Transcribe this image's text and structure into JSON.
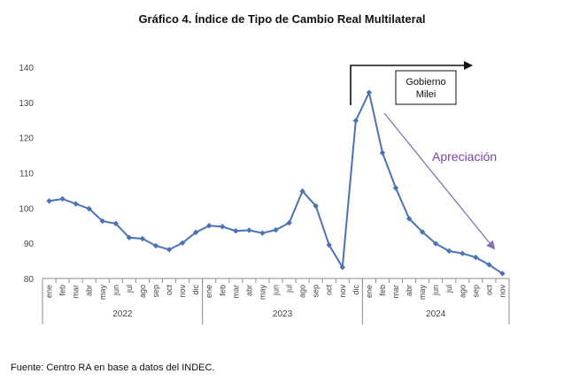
{
  "page": {
    "source": "Fuente: Centro RA en base a datos del INDEC."
  },
  "colors": {
    "series": "#4a72b8",
    "annotation_arrow": "#8a6fb3",
    "annotation_text": "#7a45a8",
    "axis": "#8c8c8c",
    "text": "#444444"
  },
  "chart_data": {
    "type": "line",
    "title": "Gráfico 4. Índice de Tipo de Cambio Real Multilateral",
    "xlabel": "",
    "ylabel": "",
    "ylim": [
      80,
      140
    ],
    "yticks": [
      80,
      90,
      100,
      110,
      120,
      130,
      140
    ],
    "grid": false,
    "legend": "none",
    "categories": [
      "ene",
      "feb",
      "mar",
      "abr",
      "may",
      "jun",
      "jul",
      "ago",
      "sep",
      "oct",
      "nov",
      "dic",
      "ene",
      "feb",
      "mar",
      "abr",
      "may",
      "jun",
      "jul",
      "ago",
      "sep",
      "oct",
      "nov",
      "dic",
      "ene",
      "feb",
      "mar",
      "abr",
      "may",
      "jun",
      "jul",
      "ago",
      "sep",
      "oct",
      "nov"
    ],
    "year_groups": [
      {
        "label": "2022",
        "start": 0,
        "end": 11
      },
      {
        "label": "2023",
        "start": 12,
        "end": 23
      },
      {
        "label": "2024",
        "start": 24,
        "end": 34
      }
    ],
    "series": [
      {
        "name": "Índice de Tipo de Cambio Real Multilateral",
        "values": [
          102.0,
          102.6,
          101.2,
          99.8,
          96.3,
          95.6,
          91.6,
          91.3,
          89.3,
          88.2,
          90.1,
          93.1,
          95.0,
          94.7,
          93.5,
          93.7,
          92.9,
          93.8,
          95.8,
          104.8,
          100.6,
          89.5,
          83.2,
          124.8,
          132.8,
          115.7,
          105.7,
          97.0,
          93.2,
          89.9,
          87.8,
          87.1,
          86.0,
          83.9,
          81.4
        ]
      }
    ],
    "annotations": {
      "gobierno_line1": "Gobierno",
      "gobierno_line2": "Milei",
      "apreciacion": "Apreciación"
    }
  }
}
